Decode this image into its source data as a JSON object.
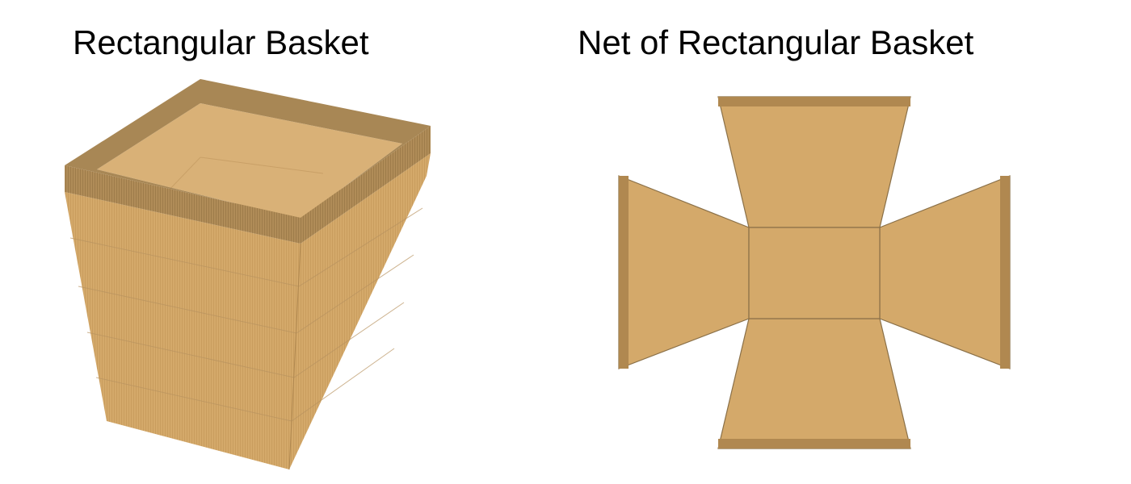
{
  "left_panel": {
    "title": "Rectangular Basket"
  },
  "right_panel": {
    "title": "Net of Rectangular Basket"
  },
  "colors": {
    "background": "#ffffff",
    "basket_body": "#d4a96a",
    "basket_rim": "#a88755",
    "rim_strip": "#b08850",
    "outline": "#8a7048"
  }
}
